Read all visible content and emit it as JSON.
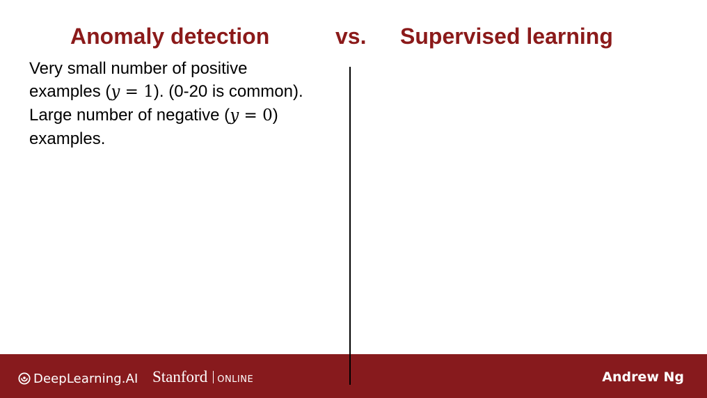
{
  "title": {
    "left": "Anomaly detection",
    "vs": "vs.",
    "right": "Supervised learning"
  },
  "left_column": {
    "line1": "Very small number of positive",
    "line2_prefix": "examples (",
    "line2_math_var": "y",
    "line2_math_rest": " = 1",
    "line2_suffix": "). (0-20 is common).",
    "line3_prefix": "Large number of negative (",
    "line3_math_var": "y",
    "line3_math_rest": " = 0",
    "line3_suffix": ")",
    "line4": "examples."
  },
  "right_column": {
    "text": ""
  },
  "footer": {
    "logo_deeplearning": "DeepLearning.AI",
    "logo_stanford": "Stanford",
    "logo_online": "ONLINE",
    "author": "Andrew Ng",
    "bar_color": "#871a1d"
  },
  "colors": {
    "title": "#8b1a1a",
    "footer": "#871a1d",
    "text": "#000000"
  }
}
